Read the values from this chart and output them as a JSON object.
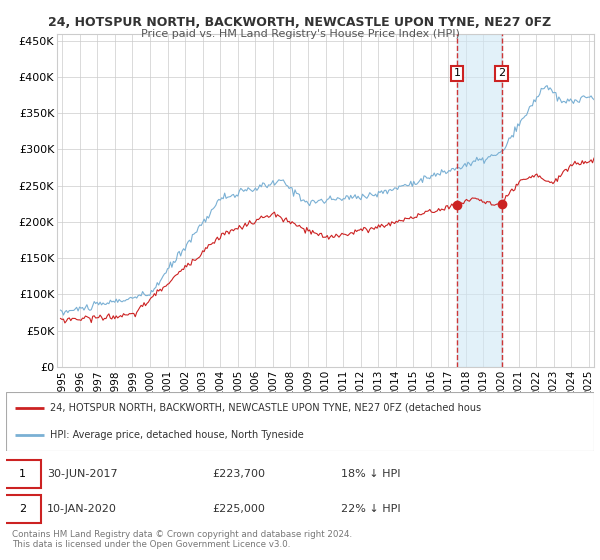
{
  "title": "24, HOTSPUR NORTH, BACKWORTH, NEWCASTLE UPON TYNE, NE27 0FZ",
  "subtitle": "Price paid vs. HM Land Registry's House Price Index (HPI)",
  "ylim": [
    0,
    460000
  ],
  "xlim_start": 1994.7,
  "xlim_end": 2025.3,
  "hpi_color": "#7ab0d4",
  "price_color": "#cc2222",
  "sale1_date": 2017.5,
  "sale1_price": 223700,
  "sale2_date": 2020.04,
  "sale2_price": 225000,
  "legend_label1": "24, HOTSPUR NORTH, BACKWORTH, NEWCASTLE UPON TYNE, NE27 0FZ (detached hous",
  "legend_label2": "HPI: Average price, detached house, North Tyneside",
  "footnote": "Contains HM Land Registry data © Crown copyright and database right 2024.\nThis data is licensed under the Open Government Licence v3.0.",
  "background_color": "#ffffff",
  "grid_color": "#cccccc"
}
